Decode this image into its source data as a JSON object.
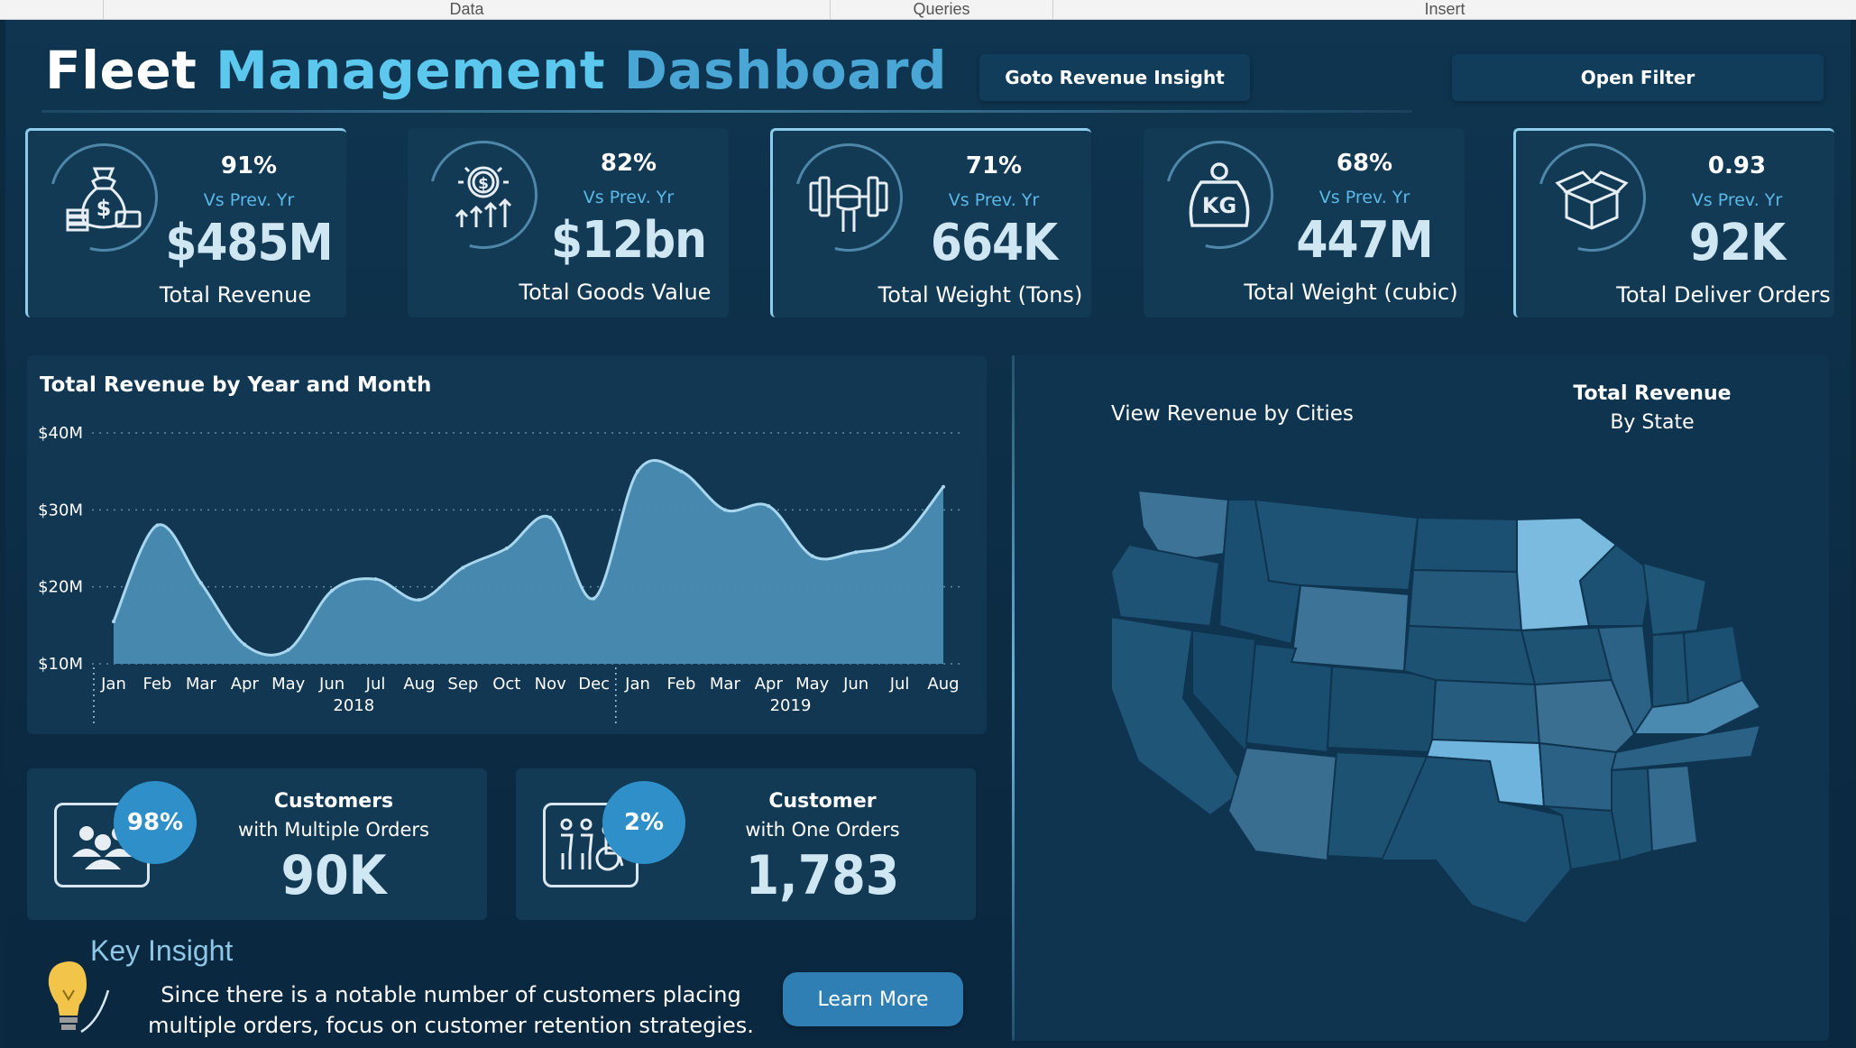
{
  "ribbon": {
    "sections": [
      "Data",
      "Queries",
      "Insert"
    ]
  },
  "header": {
    "title_part1": "Fleet",
    "title_part2": "Management",
    "title_part3": "Dashboard",
    "goto_button": "Goto Revenue Insight",
    "filter_button": "Open Filter"
  },
  "colors": {
    "accent": "#5cc8ee",
    "accent_dark": "#4aa6d4",
    "card": "#123a55",
    "bubble": "#2f8fc8"
  },
  "kpis": [
    {
      "icon": "money-bag-icon",
      "pct": "91%",
      "vs": "Vs Prev. Yr",
      "value": "$485M",
      "label": "Total Revenue",
      "highlighted": true
    },
    {
      "icon": "coin-growth-icon",
      "pct": "82%",
      "vs": "Vs Prev. Yr",
      "value": "$12bn",
      "label": "Total Goods Value",
      "highlighted": false
    },
    {
      "icon": "dumbbell-icon",
      "pct": "71%",
      "vs": "Vs Prev. Yr",
      "value": "664K",
      "label": "Total Weight (Tons)",
      "highlighted": true
    },
    {
      "icon": "kg-weight-icon",
      "pct": "68%",
      "vs": "Vs Prev. Yr",
      "value": "447M",
      "label": "Total Weight (cubic)",
      "highlighted": false
    },
    {
      "icon": "package-box-icon",
      "pct": "0.93",
      "vs": "Vs Prev. Yr",
      "value": "92K",
      "label": "Total Deliver Orders",
      "highlighted": true
    }
  ],
  "chart_data": {
    "type": "area",
    "title": "Total Revenue by Year and Month",
    "x": [
      "Jan",
      "Feb",
      "Mar",
      "Apr",
      "May",
      "Jun",
      "Jul",
      "Aug",
      "Sep",
      "Oct",
      "Nov",
      "Dec",
      "Jan",
      "Feb",
      "Mar",
      "Apr",
      "May",
      "Jun",
      "Jul",
      "Aug"
    ],
    "year_groups": [
      {
        "label": "2018",
        "count": 12
      },
      {
        "label": "2019",
        "count": 8
      }
    ],
    "series": [
      {
        "values": [
          15.5,
          28,
          20.5,
          12.5,
          11.8,
          19.5,
          21,
          18.3,
          22.5,
          25,
          29,
          18.5,
          35,
          35,
          30,
          30.5,
          24,
          24.5,
          26,
          33
        ]
      }
    ],
    "ylim": [
      10,
      40
    ],
    "yticks": [
      10,
      20,
      30,
      40
    ],
    "ytick_labels": [
      "$10M",
      "$20M",
      "$30M",
      "$40M"
    ],
    "grid": true
  },
  "customers": [
    {
      "icon": "people-group-icon",
      "pct": "98%",
      "title": "Customers",
      "sub": "with Multiple Orders",
      "value": "90K"
    },
    {
      "icon": "family-accessibility-icon",
      "pct": "2%",
      "title": "Customer",
      "sub": "with One Orders",
      "value": "1,783"
    }
  ],
  "map": {
    "subtitle": "View Revenue by Cities",
    "title_line1": "Total Revenue",
    "title_line2": "By State"
  },
  "insight": {
    "title": "Key Insight",
    "text": "Since there is a notable number of customers placing multiple orders, focus on customer retention strategies.",
    "button": "Learn More"
  }
}
